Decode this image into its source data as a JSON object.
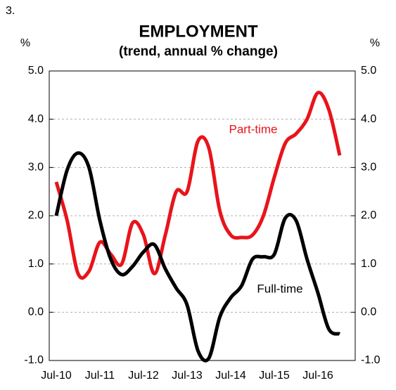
{
  "figure_number": "3.",
  "chart_data": {
    "type": "line",
    "title": "EMPLOYMENT",
    "subtitle": "(trend, annual % change)",
    "y_label": "%",
    "y2_label": "%",
    "categories": [
      "Jul-10",
      null,
      null,
      null,
      "Jul-11",
      null,
      null,
      null,
      "Jul-12",
      null,
      null,
      null,
      "Jul-13",
      null,
      null,
      null,
      "Jul-14",
      null,
      null,
      null,
      "Jul-15",
      null,
      null,
      null,
      "Jul-16",
      null,
      null
    ],
    "series": [
      {
        "name": "Part-time",
        "color": "#e8141b",
        "values": [
          2.7,
          1.9,
          0.8,
          0.85,
          1.45,
          1.2,
          1.0,
          1.85,
          1.6,
          0.8,
          1.6,
          2.5,
          2.5,
          3.55,
          3.4,
          2.1,
          1.6,
          1.55,
          1.6,
          2.0,
          2.8,
          3.5,
          3.7,
          4.0,
          4.55,
          4.2,
          3.25
        ]
      },
      {
        "name": "Full-time",
        "color": "#000000",
        "values": [
          2.0,
          2.95,
          3.3,
          3.0,
          1.9,
          1.1,
          0.78,
          0.95,
          1.25,
          1.4,
          0.9,
          0.5,
          0.15,
          -0.8,
          -0.95,
          -0.1,
          0.3,
          0.55,
          1.1,
          1.15,
          1.2,
          1.95,
          1.9,
          1.1,
          0.4,
          -0.35,
          -0.45
        ]
      }
    ],
    "ylim": [
      -1,
      5
    ],
    "yticks": [
      {
        "value": -1,
        "label": "-1.0"
      },
      {
        "value": 0,
        "label": "0.0"
      },
      {
        "value": 1,
        "label": "1.0"
      },
      {
        "value": 2,
        "label": "2.0"
      },
      {
        "value": 3,
        "label": "3.0"
      },
      {
        "value": 4,
        "label": "4.0"
      },
      {
        "value": 5,
        "label": "5.0"
      }
    ],
    "y2lim": [
      -1,
      5
    ],
    "y2ticks": [
      {
        "value": -1,
        "label": "-1.0"
      },
      {
        "value": 0,
        "label": "0.0"
      },
      {
        "value": 1,
        "label": "1.0"
      },
      {
        "value": 2,
        "label": "2.0"
      },
      {
        "value": 3,
        "label": "3.0"
      },
      {
        "value": 4,
        "label": "4.0"
      },
      {
        "value": 5,
        "label": "5.0"
      }
    ],
    "grid": true
  }
}
